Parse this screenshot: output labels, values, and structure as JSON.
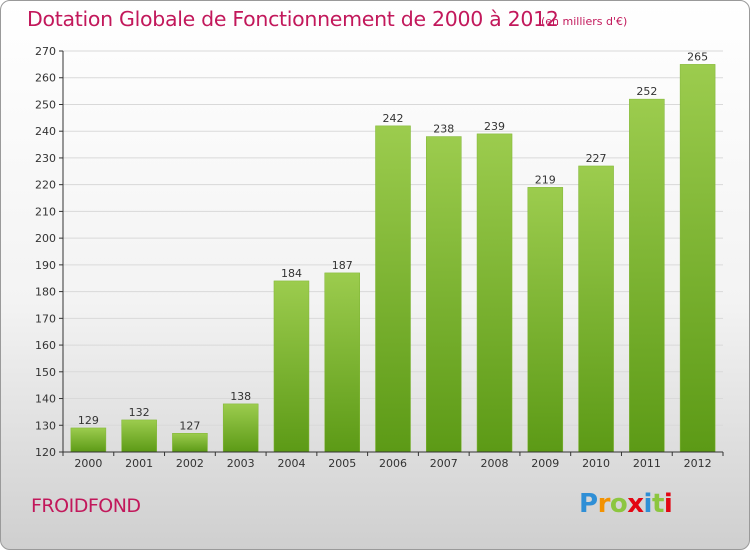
{
  "chart_data": {
    "type": "bar",
    "title": "Dotation Globale de Fonctionnement de 2000 à 2012",
    "subtitle": "(en milliers d'€)",
    "categories": [
      "2000",
      "2001",
      "2002",
      "2003",
      "2004",
      "2005",
      "2006",
      "2007",
      "2008",
      "2009",
      "2010",
      "2011",
      "2012"
    ],
    "values": [
      129,
      132,
      127,
      138,
      184,
      187,
      242,
      238,
      239,
      219,
      227,
      252,
      265
    ],
    "ylim": [
      120,
      270
    ],
    "yticks": [
      120,
      130,
      140,
      150,
      160,
      170,
      180,
      190,
      200,
      210,
      220,
      230,
      240,
      250,
      260,
      270
    ],
    "grid": true,
    "xlabel": "",
    "ylabel": "",
    "colors": {
      "bar_top": "#9ccc4e",
      "bar_bottom": "#5c9a16",
      "axis": "#333333",
      "grid": "#d9d9d9",
      "title": "#c2185b"
    }
  },
  "commune": "FROIDFOND",
  "logo": {
    "letters": [
      "P",
      "r",
      "o",
      "x",
      "i",
      "t",
      "i"
    ],
    "colors": [
      "#2f8fd6",
      "#f39200",
      "#8cc63f",
      "#e30613",
      "#2f8fd6",
      "#8cc63f",
      "#e30613"
    ]
  }
}
